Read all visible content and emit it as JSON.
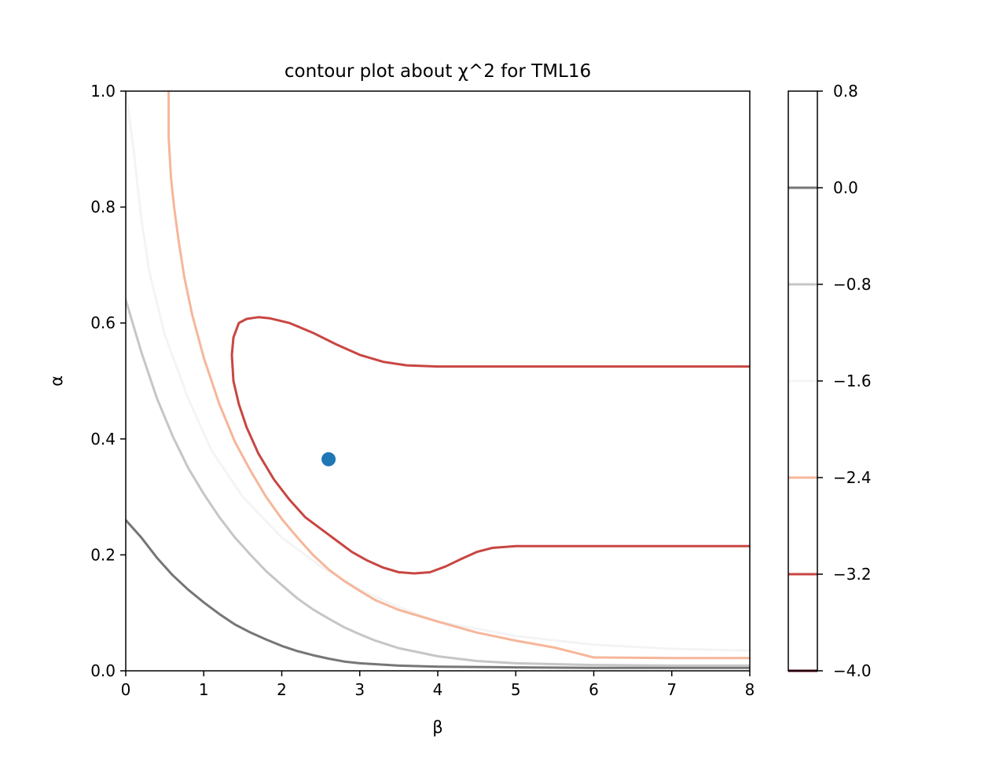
{
  "chart_data": {
    "type": "contour",
    "title": "contour plot about χ^2 for TML16",
    "xlabel": "β",
    "ylabel": "α",
    "xlim": [
      0,
      8
    ],
    "ylim": [
      0,
      1
    ],
    "x_ticks": [
      0,
      1,
      2,
      3,
      4,
      5,
      6,
      7,
      8
    ],
    "y_ticks": [
      0.0,
      0.2,
      0.4,
      0.6,
      0.8,
      1.0
    ],
    "x_tick_labels": [
      "0",
      "1",
      "2",
      "3",
      "4",
      "5",
      "6",
      "7",
      "8"
    ],
    "y_tick_labels": [
      "0.0",
      "0.2",
      "0.4",
      "0.6",
      "0.8",
      "1.0"
    ],
    "colorbar": {
      "range": [
        -4.0,
        0.8
      ],
      "ticks": [
        0.8,
        0.0,
        -0.8,
        -1.6,
        -2.4,
        -3.2,
        -4.0
      ],
      "tick_labels": [
        "0.8",
        "0.0",
        "−0.8",
        "−1.6",
        "−2.4",
        "−3.2",
        "−4.0"
      ]
    },
    "marker": {
      "x": 2.6,
      "y": 0.365,
      "color": "#1f77b4"
    },
    "contours": [
      {
        "level": 0.8,
        "color": "#ffffff",
        "paths": []
      },
      {
        "level": 0.0,
        "color": "#767676",
        "paths": [
          [
            [
              0,
              0.26
            ],
            [
              0.2,
              0.23
            ],
            [
              0.4,
              0.195
            ],
            [
              0.6,
              0.165
            ],
            [
              0.8,
              0.14
            ],
            [
              1,
              0.118
            ],
            [
              1.2,
              0.098
            ],
            [
              1.4,
              0.08
            ],
            [
              1.6,
              0.066
            ],
            [
              1.8,
              0.054
            ],
            [
              2,
              0.043
            ],
            [
              2.2,
              0.034
            ],
            [
              2.4,
              0.027
            ],
            [
              2.6,
              0.021
            ],
            [
              2.8,
              0.016
            ],
            [
              3.0,
              0.013
            ],
            [
              3.5,
              0.009
            ],
            [
              4,
              0.007
            ],
            [
              5,
              0.006
            ],
            [
              6,
              0.005
            ],
            [
              7,
              0.005
            ],
            [
              8,
              0.005
            ]
          ]
        ]
      },
      {
        "level": -0.8,
        "color": "#c6c6c6",
        "paths": [
          [
            [
              0,
              0.64
            ],
            [
              0.2,
              0.55
            ],
            [
              0.4,
              0.47
            ],
            [
              0.6,
              0.405
            ],
            [
              0.8,
              0.35
            ],
            [
              1,
              0.305
            ],
            [
              1.2,
              0.265
            ],
            [
              1.4,
              0.23
            ],
            [
              1.6,
              0.2
            ],
            [
              1.8,
              0.172
            ],
            [
              2,
              0.148
            ],
            [
              2.2,
              0.125
            ],
            [
              2.4,
              0.106
            ],
            [
              2.6,
              0.09
            ],
            [
              2.8,
              0.075
            ],
            [
              3.0,
              0.063
            ],
            [
              3.2,
              0.052
            ],
            [
              3.5,
              0.039
            ],
            [
              4,
              0.025
            ],
            [
              4.5,
              0.017
            ],
            [
              5,
              0.013
            ],
            [
              6,
              0.01
            ],
            [
              7,
              0.009
            ],
            [
              8,
              0.009
            ]
          ]
        ]
      },
      {
        "level": -1.6,
        "color": "#f4f4f4",
        "paths": [
          [
            [
              0,
              1.0
            ],
            [
              0.1,
              0.9
            ],
            [
              0.2,
              0.78
            ],
            [
              0.3,
              0.69
            ],
            [
              0.5,
              0.58
            ],
            [
              0.8,
              0.47
            ],
            [
              1.1,
              0.38
            ],
            [
              1.5,
              0.3
            ],
            [
              2,
              0.23
            ],
            [
              2.5,
              0.18
            ],
            [
              3,
              0.14
            ],
            [
              3.5,
              0.11
            ],
            [
              4,
              0.085
            ],
            [
              5,
              0.06
            ],
            [
              6,
              0.045
            ],
            [
              7,
              0.038
            ],
            [
              8,
              0.035
            ]
          ]
        ]
      },
      {
        "level": -2.4,
        "color": "#f6b69a",
        "paths": [
          [
            [
              0.55,
              1.0
            ],
            [
              0.55,
              0.92
            ],
            [
              0.58,
              0.85
            ],
            [
              0.62,
              0.8
            ],
            [
              0.68,
              0.74
            ],
            [
              0.75,
              0.68
            ],
            [
              0.85,
              0.615
            ],
            [
              1,
              0.54
            ],
            [
              1.2,
              0.46
            ],
            [
              1.4,
              0.395
            ],
            [
              1.6,
              0.345
            ],
            [
              1.8,
              0.3
            ],
            [
              2,
              0.262
            ],
            [
              2.2,
              0.23
            ],
            [
              2.4,
              0.2
            ],
            [
              2.6,
              0.175
            ],
            [
              2.8,
              0.155
            ],
            [
              3,
              0.138
            ],
            [
              3.2,
              0.122
            ],
            [
              3.5,
              0.105
            ],
            [
              4,
              0.085
            ],
            [
              4.5,
              0.066
            ],
            [
              5,
              0.052
            ],
            [
              5.5,
              0.04
            ],
            [
              5.8,
              0.03
            ],
            [
              6,
              0.023
            ],
            [
              7,
              0.022
            ],
            [
              8,
              0.022
            ]
          ]
        ]
      },
      {
        "level": -3.2,
        "color": "#c84642",
        "paths": [
          [
            [
              8,
              0.525
            ],
            [
              6,
              0.525
            ],
            [
              4,
              0.525
            ],
            [
              3.6,
              0.527
            ],
            [
              3.3,
              0.533
            ],
            [
              3.0,
              0.545
            ],
            [
              2.7,
              0.563
            ],
            [
              2.4,
              0.583
            ],
            [
              2.1,
              0.6
            ],
            [
              1.85,
              0.608
            ],
            [
              1.7,
              0.61
            ],
            [
              1.55,
              0.607
            ],
            [
              1.45,
              0.6
            ],
            [
              1.38,
              0.575
            ],
            [
              1.36,
              0.545
            ],
            [
              1.38,
              0.5
            ],
            [
              1.45,
              0.46
            ],
            [
              1.55,
              0.42
            ],
            [
              1.7,
              0.375
            ],
            [
              1.9,
              0.33
            ],
            [
              2.1,
              0.295
            ],
            [
              2.3,
              0.265
            ],
            [
              2.5,
              0.245
            ],
            [
              2.7,
              0.225
            ],
            [
              2.9,
              0.205
            ],
            [
              3.1,
              0.19
            ],
            [
              3.3,
              0.178
            ],
            [
              3.5,
              0.17
            ],
            [
              3.7,
              0.168
            ],
            [
              3.9,
              0.17
            ],
            [
              4.1,
              0.18
            ],
            [
              4.3,
              0.193
            ],
            [
              4.5,
              0.205
            ],
            [
              4.7,
              0.212
            ],
            [
              5,
              0.215
            ],
            [
              6,
              0.215
            ],
            [
              7,
              0.215
            ],
            [
              8,
              0.215
            ]
          ]
        ]
      }
    ]
  }
}
